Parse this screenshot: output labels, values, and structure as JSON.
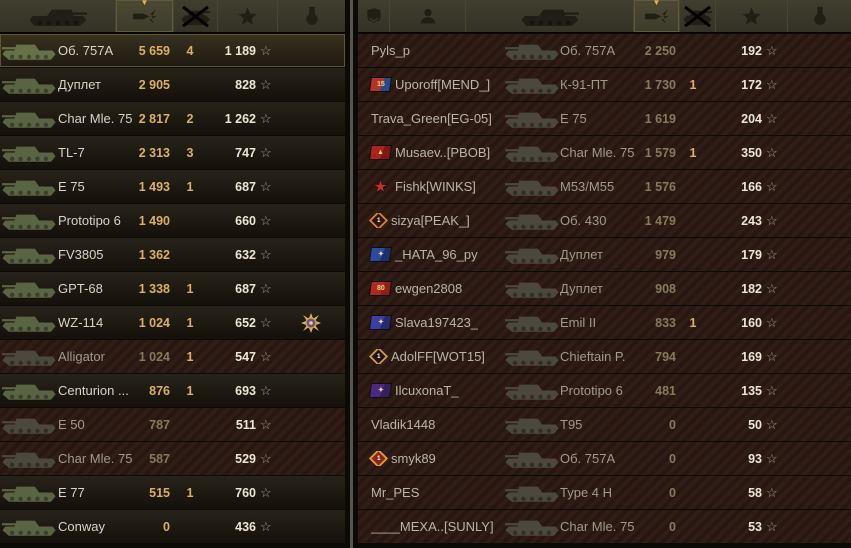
{
  "colors": {
    "gold_accent": "#d9b264",
    "xp_text": "#ece6d4",
    "dead_row_bg": "#2e1a13",
    "alive_row_bg": "#1f1b12",
    "own_row_border": "#5f5333",
    "header_bg": "#3c3a2b",
    "sort_chevron": "#e3b64e",
    "divider": "#58564c"
  },
  "left_panel": {
    "header": {
      "columns": [
        "tank",
        "damage",
        "frags",
        "xp",
        "medals"
      ],
      "sorted_column": "damage",
      "sort_indicator": "▼"
    },
    "rows": [
      {
        "tank": "Об. 757А",
        "damage": "5 659",
        "frags": "4",
        "xp": "1 189",
        "status": "self"
      },
      {
        "tank": "Дуплет",
        "damage": "2 905",
        "frags": "",
        "xp": "828",
        "status": "alive"
      },
      {
        "tank": "Char Mle. 75",
        "damage": "2 817",
        "frags": "2",
        "xp": "1 262",
        "status": "alive"
      },
      {
        "tank": "TL-7",
        "damage": "2 313",
        "frags": "3",
        "xp": "747",
        "status": "alive"
      },
      {
        "tank": "E 75",
        "damage": "1 493",
        "frags": "1",
        "xp": "687",
        "status": "alive"
      },
      {
        "tank": "Prototipo 6",
        "damage": "1 490",
        "frags": "",
        "xp": "660",
        "status": "alive"
      },
      {
        "tank": "FV3805",
        "damage": "1 362",
        "frags": "",
        "xp": "632",
        "status": "alive"
      },
      {
        "tank": "GPT-68",
        "damage": "1 338",
        "frags": "1",
        "xp": "687",
        "status": "alive"
      },
      {
        "tank": "WZ-114",
        "damage": "1 024",
        "frags": "1",
        "xp": "652",
        "status": "alive",
        "medal": "epic-medal"
      },
      {
        "tank": "Alligator",
        "damage": "1 024",
        "frags": "1",
        "xp": "547",
        "status": "dead"
      },
      {
        "tank": "Centurion ...",
        "damage": "876",
        "frags": "1",
        "xp": "693",
        "status": "alive"
      },
      {
        "tank": "E 50",
        "damage": "787",
        "frags": "",
        "xp": "511",
        "status": "dead"
      },
      {
        "tank": "Char Mle. 75",
        "damage": "587",
        "frags": "",
        "xp": "529",
        "status": "dead"
      },
      {
        "tank": "E 77",
        "damage": "515",
        "frags": "1",
        "xp": "760",
        "status": "alive"
      },
      {
        "tank": "Conway",
        "damage": "0",
        "frags": "",
        "xp": "436",
        "status": "alive"
      }
    ]
  },
  "right_panel": {
    "header": {
      "columns": [
        "rank",
        "player",
        "tank",
        "damage",
        "frags",
        "xp",
        "medals"
      ],
      "sorted_column": "damage",
      "sort_indicator": "▼"
    },
    "rows": [
      {
        "player": "Pyls_p",
        "tank": "Об. 757А",
        "damage": "2 250",
        "frags": "",
        "xp": "192",
        "status": "dead"
      },
      {
        "player": "Uporoff[MEND_]",
        "tank": "К-91-ПТ",
        "damage": "1 730",
        "frags": "1",
        "xp": "172",
        "status": "dead",
        "emblem": {
          "shape": "flag",
          "color1": "#b5342a",
          "color2": "#274a8e",
          "label": "15"
        }
      },
      {
        "player": "Trava_Green[EG-05]",
        "tank": "E 75",
        "damage": "1 619",
        "frags": "",
        "xp": "204",
        "status": "dead"
      },
      {
        "player": "Musaev..[PBOB]",
        "tank": "Char Mle. 75",
        "damage": "1 579",
        "frags": "1",
        "xp": "350",
        "status": "dead",
        "emblem": {
          "shape": "flag",
          "color1": "#a8241c",
          "color2": "#7d1815",
          "label": "▲"
        }
      },
      {
        "player": "Fishk[WINKS]",
        "tank": "M53/M55",
        "damage": "1 576",
        "frags": "",
        "xp": "166",
        "status": "dead",
        "emblem": {
          "shape": "star",
          "color1": "#c9302a",
          "color2": "#8f1c18",
          "label": "★"
        }
      },
      {
        "player": "sizya[PEAK_]",
        "tank": "Об. 430",
        "damage": "1 479",
        "frags": "",
        "xp": "243",
        "status": "dead",
        "emblem": {
          "shape": "diamond",
          "color1": "#d8842a",
          "color2": "#2a160e",
          "label": "1"
        }
      },
      {
        "player": "_HATA_96_py",
        "tank": "Дуплет",
        "damage": "979",
        "frags": "",
        "xp": "179",
        "status": "dead",
        "emblem": {
          "shape": "flag",
          "color1": "#2b4aa0",
          "color2": "#1a2f6e",
          "label": "✦"
        }
      },
      {
        "player": "ewgen2808",
        "tank": "Дуплет",
        "damage": "908",
        "frags": "",
        "xp": "182",
        "status": "dead",
        "emblem": {
          "shape": "flag",
          "color1": "#b02a22",
          "color2": "#8f1f1a",
          "label": "80"
        }
      },
      {
        "player": "Slava197423_",
        "tank": "Emil II",
        "damage": "833",
        "frags": "1",
        "xp": "160",
        "status": "dead",
        "emblem": {
          "shape": "flag",
          "color1": "#3b3f9e",
          "color2": "#262a75",
          "label": "✦"
        }
      },
      {
        "player": "AdolFF[WOT15]",
        "tank": "Chieftain P.",
        "damage": "794",
        "frags": "",
        "xp": "169",
        "status": "dead",
        "emblem": {
          "shape": "diamond",
          "color1": "#c8a04a",
          "color2": "#241018",
          "label": "1"
        }
      },
      {
        "player": "IlcuxonaT_",
        "tank": "Prototipo 6",
        "damage": "481",
        "frags": "",
        "xp": "135",
        "status": "dead",
        "emblem": {
          "shape": "flag",
          "color1": "#4a2a7e",
          "color2": "#33205c",
          "label": "✦"
        }
      },
      {
        "player": "Vladik1448",
        "tank": "T95",
        "damage": "0",
        "frags": "",
        "xp": "50",
        "status": "dead"
      },
      {
        "player": "smyk89",
        "tank": "Об. 757А",
        "damage": "0",
        "frags": "",
        "xp": "93",
        "status": "dead",
        "emblem": {
          "shape": "diamond",
          "color1": "#d8a43a",
          "color2": "#8f2318",
          "label": "1"
        }
      },
      {
        "player": "Mr_PES",
        "tank": "Type 4 H",
        "damage": "0",
        "frags": "",
        "xp": "58",
        "status": "dead"
      },
      {
        "player": "____MEXA..[SUNLY]",
        "tank": "Char Mle. 75",
        "damage": "0",
        "frags": "",
        "xp": "53",
        "status": "dead"
      }
    ]
  }
}
